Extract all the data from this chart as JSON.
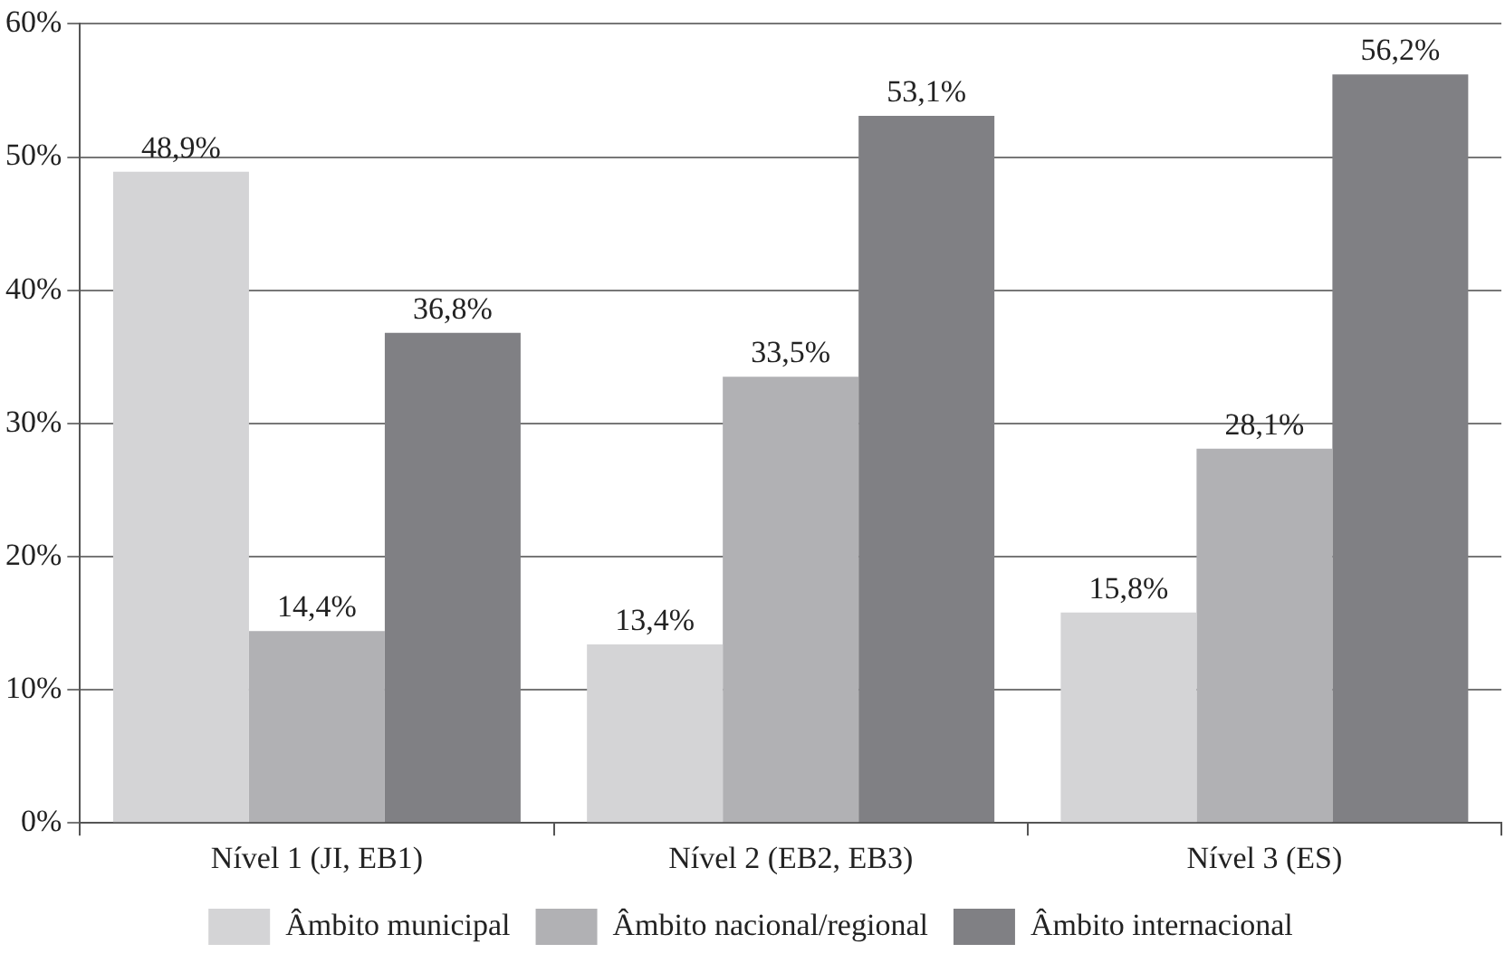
{
  "chart_data": {
    "type": "bar",
    "categories": [
      "Nível 1 (JI, EB1)",
      "Nível 2 (EB2, EB3)",
      "Nível 3 (ES)"
    ],
    "series": [
      {
        "name": "Âmbito municipal",
        "color": "#d4d4d6",
        "values": [
          48.9,
          13.4,
          15.8
        ],
        "value_labels": [
          "48,9%",
          "13,4%",
          "15,8%"
        ]
      },
      {
        "name": "Âmbito nacional/regional",
        "color": "#b1b1b4",
        "values": [
          14.4,
          33.5,
          28.1
        ],
        "value_labels": [
          "14,4%",
          "33,5%",
          "28,1%"
        ]
      },
      {
        "name": "Âmbito internacional",
        "color": "#808084",
        "values": [
          36.8,
          53.1,
          56.2
        ],
        "value_labels": [
          "36,8%",
          "53,1%",
          "56,2%"
        ]
      }
    ],
    "ylim": [
      0,
      60
    ],
    "yticks": [
      {
        "value": 0,
        "label": "0%"
      },
      {
        "value": 10,
        "label": "10%"
      },
      {
        "value": 20,
        "label": "20%"
      },
      {
        "value": 30,
        "label": "30%"
      },
      {
        "value": 40,
        "label": "40%"
      },
      {
        "value": 50,
        "label": "50%"
      },
      {
        "value": 60,
        "label": "60%"
      }
    ],
    "grid": "y",
    "legend": "bottom"
  }
}
